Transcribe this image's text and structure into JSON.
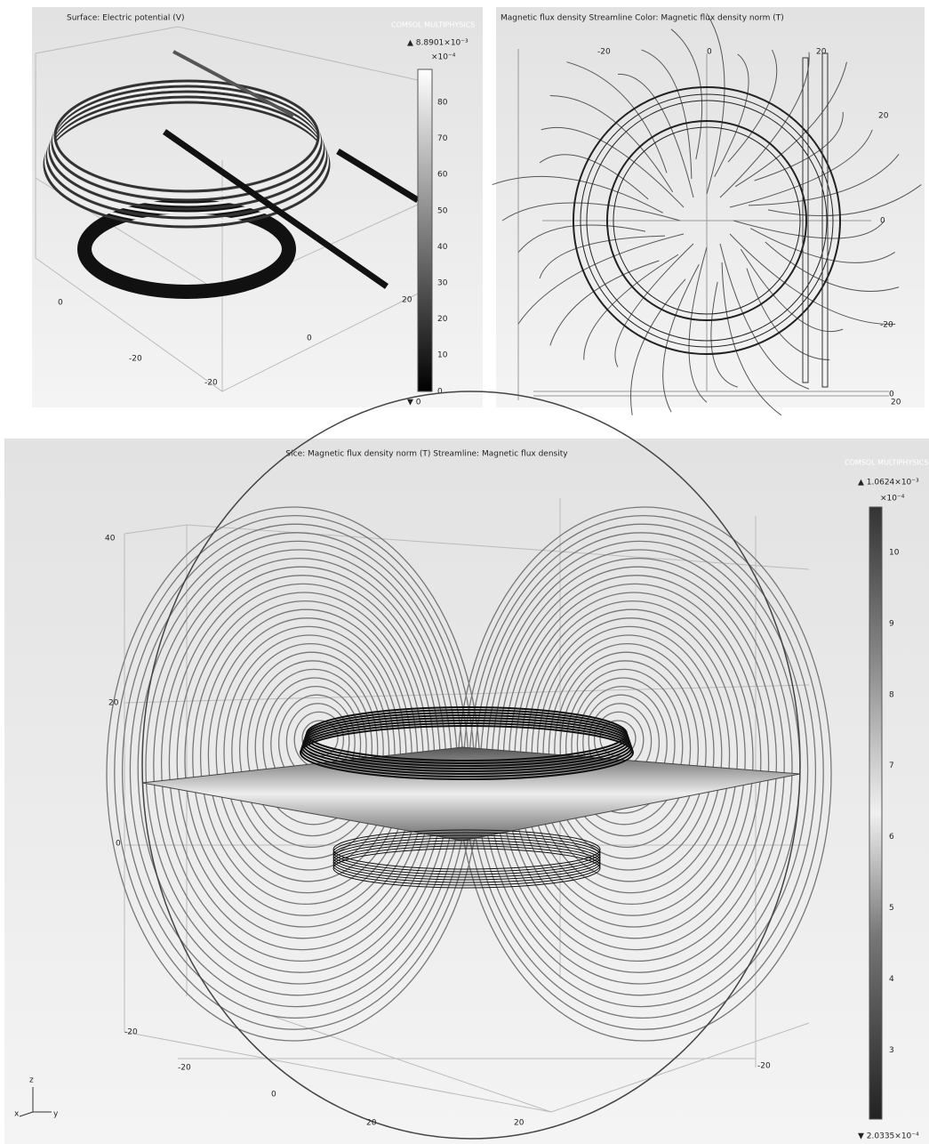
{
  "panels": [
    {
      "title": "Surface: Electric potential (V)",
      "logo": "COMSOL MULTIPHYSICS",
      "max_label": "▲ 8.8901×10⁻³",
      "exponent": "×10⁻⁴",
      "colorbar_ticks": [
        "80",
        "70",
        "60",
        "50",
        "40",
        "30",
        "20",
        "10",
        "0"
      ],
      "min_label": "▼ 0",
      "axis_labels": [
        "0",
        "-20",
        "-20",
        "0",
        "20"
      ]
    },
    {
      "title": "Magnetic flux density  Streamline Color: Magnetic flux density norm (T)",
      "top_labels": [
        "-20",
        "0",
        "20"
      ],
      "right_labels": [
        "20",
        "0",
        "-20"
      ],
      "bottom_labels": [
        "0",
        "20"
      ]
    },
    {
      "title": "Sice: Magnetic flux density norm (T) Streamline: Magnetic flux density",
      "logo": "COMSOL MULTIPHYSICS",
      "max_label": "▲ 1.0624×10⁻³",
      "exponent": "×10⁻⁴",
      "colorbar_ticks": [
        "10",
        "9",
        "8",
        "7",
        "6",
        "5",
        "4",
        "3"
      ],
      "min_label": "▼ 2.0335×10⁻⁴",
      "axis_labels": [
        "40",
        "20",
        "0",
        "-20",
        "-20",
        "0",
        "20",
        "20",
        "-20"
      ],
      "triad": [
        "z",
        "x",
        "y"
      ]
    }
  ]
}
